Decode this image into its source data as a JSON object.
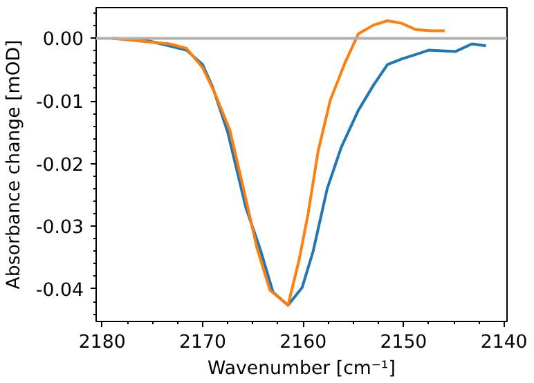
{
  "chart_data": {
    "type": "line",
    "xlabel": "Wavenumber [cm⁻¹]",
    "ylabel": "Absorbance change [mOD]",
    "xlim": [
      2180.6,
      2139.7
    ],
    "ylim": [
      -0.0452,
      0.0049
    ],
    "xticks": [
      2180,
      2170,
      2160,
      2150,
      2140
    ],
    "yticks": [
      {
        "value": 0,
        "label": "0.00"
      },
      {
        "value": -0.01,
        "label": "-0.01"
      },
      {
        "value": -0.02,
        "label": "-0.02"
      },
      {
        "value": -0.03,
        "label": "-0.03"
      },
      {
        "value": -0.04,
        "label": "-0.04"
      }
    ],
    "grid": false,
    "ref_lines": [
      {
        "axis": "y",
        "value": 0,
        "color": "#b0b0b0"
      }
    ],
    "series": [
      {
        "color": "#1f77b4",
        "x": [
          2179,
          2175.9,
          2171.6,
          2170,
          2169,
          2167.5,
          2165.7,
          2164.2,
          2163,
          2161.5,
          2160.1,
          2159,
          2157.6,
          2156.2,
          2154.5,
          2153,
          2151.6,
          2150.2,
          2148.8,
          2147.5,
          2144.8,
          2143.2,
          2141.8
        ],
        "values": [
          0,
          -0.0002,
          -0.0019,
          -0.0042,
          -0.0078,
          -0.015,
          -0.027,
          -0.034,
          -0.0405,
          -0.0426,
          -0.0398,
          -0.034,
          -0.024,
          -0.0174,
          -0.0115,
          -0.0075,
          -0.0042,
          -0.0033,
          -0.0026,
          -0.0019,
          -0.0021,
          -0.0009,
          -0.0012
        ]
      },
      {
        "color": "#ff7f0e",
        "x": [
          2179,
          2173.3,
          2171.6,
          2170,
          2168.8,
          2167.3,
          2166,
          2164.6,
          2163.3,
          2161.5,
          2160.4,
          2159.5,
          2158.5,
          2157.3,
          2155.8,
          2154.5,
          2153,
          2151.6,
          2150.2,
          2148.8,
          2147.3,
          2145.9
        ],
        "values": [
          0,
          -0.0009,
          -0.0016,
          -0.0047,
          -0.0087,
          -0.0146,
          -0.0235,
          -0.0334,
          -0.0402,
          -0.0426,
          -0.0354,
          -0.028,
          -0.018,
          -0.0099,
          -0.0038,
          0.0007,
          0.0021,
          0.0028,
          0.0024,
          0.0014,
          0.0012,
          0.0012
        ]
      }
    ]
  }
}
